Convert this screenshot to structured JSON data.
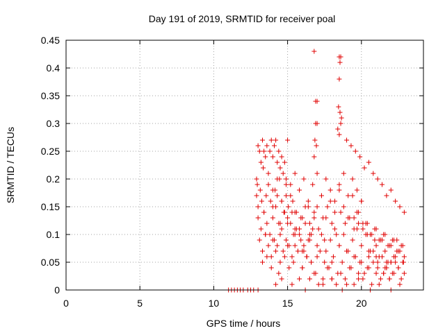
{
  "chart_data": {
    "type": "scatter",
    "title": "Day 191 of 2019, SRMTID for receiver poal",
    "xlabel": "GPS time / hours",
    "ylabel": "SRMTID / TECUs",
    "xlim": [
      0,
      24.2
    ],
    "ylim": [
      0,
      0.45
    ],
    "xticks": [
      0,
      5,
      10,
      15,
      20
    ],
    "xtick_labels": [
      "0",
      "5",
      "10",
      "15",
      "20"
    ],
    "yticks": [
      0,
      0.05,
      0.1,
      0.15,
      0.2,
      0.25,
      0.3,
      0.35,
      0.4,
      0.45
    ],
    "ytick_labels": [
      "0",
      "0.05",
      "0.1",
      "0.15",
      "0.2",
      "0.25",
      "0.3",
      "0.35",
      "0.4",
      "0.45"
    ],
    "grid": true,
    "marker": "+",
    "color": "#e00000",
    "series": [
      {
        "name": "SRMTID",
        "x": [
          11.0,
          11.2,
          11.4,
          11.6,
          11.8,
          12.0,
          12.3,
          12.5,
          12.7,
          13.0,
          12.9,
          12.95,
          13.0,
          13.1,
          13.2,
          13.3,
          13.35,
          13.4,
          13.5,
          13.6,
          13.7,
          13.8,
          13.9,
          14.0,
          14.1,
          14.2,
          14.3,
          14.4,
          14.5,
          14.6,
          14.7,
          14.8,
          14.9,
          15.0,
          12.9,
          13.0,
          13.15,
          13.25,
          13.4,
          13.55,
          13.7,
          13.85,
          14.0,
          14.15,
          14.3,
          14.45,
          14.6,
          14.75,
          14.9,
          15.05,
          15.2,
          15.35,
          15.5,
          13.0,
          13.2,
          13.4,
          13.6,
          13.8,
          14.0,
          14.2,
          14.4,
          14.6,
          14.8,
          15.0,
          15.2,
          15.4,
          15.6,
          15.8,
          16.0,
          16.2,
          16.4,
          16.6,
          16.8,
          13.1,
          13.3,
          13.5,
          13.7,
          13.9,
          14.1,
          14.3,
          14.5,
          14.7,
          14.9,
          15.1,
          15.3,
          15.5,
          15.7,
          15.9,
          16.1,
          16.3,
          16.5,
          13.3,
          13.6,
          13.9,
          14.2,
          14.5,
          14.8,
          15.1,
          15.4,
          15.7,
          16.0,
          16.3,
          16.6,
          14.0,
          14.3,
          14.6,
          14.9,
          15.2,
          15.5,
          15.8,
          16.1,
          16.4,
          16.7,
          17.0,
          17.3,
          17.6,
          17.9,
          18.2,
          18.5,
          18.8,
          19.1,
          19.4,
          19.7,
          20.0,
          15.0,
          15.3,
          15.6,
          15.9,
          16.2,
          16.5,
          16.8,
          17.1,
          17.4,
          17.7,
          18.0,
          18.3,
          18.6,
          18.9,
          19.2,
          19.5,
          19.8,
          20.1,
          20.4,
          15.5,
          15.8,
          16.1,
          16.4,
          16.7,
          17.0,
          17.3,
          17.6,
          17.9,
          18.2,
          18.5,
          18.8,
          19.1,
          19.4,
          19.7,
          20.0,
          20.3,
          20.6,
          20.9,
          16.0,
          16.3,
          16.6,
          16.9,
          17.2,
          17.5,
          17.8,
          18.1,
          18.4,
          18.7,
          19.0,
          19.3,
          19.6,
          19.9,
          20.2,
          20.5,
          20.8,
          21.1,
          21.4,
          21.7,
          16.5,
          16.8,
          17.1,
          17.4,
          17.7,
          18.0,
          18.3,
          18.6,
          18.9,
          19.2,
          19.5,
          19.8,
          20.1,
          20.4,
          20.7,
          21.0,
          21.3,
          21.6,
          21.9,
          22.2,
          17.0,
          17.3,
          17.6,
          17.9,
          18.2,
          18.5,
          18.8,
          19.1,
          19.4,
          19.7,
          20.0,
          20.3,
          20.6,
          20.9,
          21.2,
          21.5,
          21.8,
          22.1,
          22.4,
          22.7,
          16.8,
          16.9,
          17.0,
          16.85,
          16.95,
          16.9,
          17.0,
          16.8,
          18.5,
          18.55,
          18.6,
          18.5,
          18.45,
          18.55,
          18.6,
          18.5,
          18.65,
          18.4,
          19.0,
          19.3,
          19.6,
          19.9,
          20.2,
          20.5,
          20.8,
          21.1,
          21.4,
          21.7,
          22.0,
          22.3,
          22.6,
          22.9,
          19.5,
          19.8,
          20.1,
          20.4,
          20.7,
          21.0,
          21.3,
          21.6,
          21.9,
          22.2,
          22.5,
          22.8,
          20.5,
          20.8,
          21.1,
          21.4,
          21.7,
          22.0,
          22.3,
          22.6,
          22.85,
          21.0,
          21.2,
          21.4,
          21.6,
          21.8,
          22.0,
          22.2,
          22.4,
          22.6,
          22.8,
          21.5,
          21.7,
          21.9,
          22.1,
          22.3,
          22.5,
          22.7,
          22.9,
          13.5,
          14.0,
          14.5,
          15.0,
          15.5,
          16.0,
          16.5,
          17.0,
          17.5,
          18.0,
          18.5,
          19.0,
          19.5,
          20.0,
          20.5,
          21.0,
          21.5,
          22.0,
          22.5,
          22.9,
          14.2,
          14.4,
          14.6,
          15.3,
          15.8,
          16.2,
          17.4,
          18.0,
          18.7,
          19.0,
          19.8,
          20.6,
          21.2,
          22.0,
          22.6
        ],
        "y": [
          0,
          0,
          0,
          0,
          0,
          0,
          0,
          0,
          0,
          0,
          0.2,
          0.19,
          0.26,
          0.25,
          0.23,
          0.27,
          0.22,
          0.25,
          0.24,
          0.26,
          0.21,
          0.25,
          0.27,
          0.24,
          0.26,
          0.27,
          0.23,
          0.25,
          0.22,
          0.24,
          0.21,
          0.23,
          0.2,
          0.27,
          0.17,
          0.15,
          0.18,
          0.16,
          0.14,
          0.17,
          0.19,
          0.16,
          0.15,
          0.18,
          0.17,
          0.2,
          0.16,
          0.14,
          0.17,
          0.15,
          0.19,
          0.16,
          0.14,
          0.13,
          0.11,
          0.14,
          0.12,
          0.1,
          0.13,
          0.15,
          0.12,
          0.11,
          0.14,
          0.13,
          0.12,
          0.1,
          0.14,
          0.11,
          0.13,
          0.12,
          0.15,
          0.1,
          0.13,
          0.09,
          0.07,
          0.1,
          0.08,
          0.06,
          0.09,
          0.08,
          0.1,
          0.07,
          0.09,
          0.08,
          0.06,
          0.1,
          0.07,
          0.09,
          0.08,
          0.06,
          0.09,
          0.05,
          0.06,
          0.04,
          0.07,
          0.05,
          0.06,
          0.04,
          0.05,
          0.07,
          0.04,
          0.06,
          0.05,
          0.18,
          0.2,
          0.16,
          0.19,
          0.17,
          0.21,
          0.18,
          0.2,
          0.16,
          0.19,
          0.21,
          0.17,
          0.2,
          0.18,
          0.16,
          0.19,
          0.21,
          0.17,
          0.2,
          0.18,
          0.16,
          0.12,
          0.14,
          0.11,
          0.13,
          0.15,
          0.12,
          0.14,
          0.11,
          0.13,
          0.15,
          0.12,
          0.1,
          0.14,
          0.12,
          0.13,
          0.11,
          0.14,
          0.12,
          0.1,
          0.08,
          0.1,
          0.07,
          0.09,
          0.11,
          0.08,
          0.1,
          0.07,
          0.09,
          0.11,
          0.08,
          0.1,
          0.07,
          0.09,
          0.11,
          0.08,
          0.1,
          0.07,
          0.09,
          0.04,
          0.06,
          0.05,
          0.03,
          0.07,
          0.05,
          0.04,
          0.06,
          0.03,
          0.05,
          0.07,
          0.04,
          0.06,
          0.05,
          0.03,
          0.07,
          0.05,
          0.04,
          0.06,
          0.05,
          0.02,
          0.03,
          0.01,
          0.02,
          0.04,
          0.02,
          0.01,
          0.03,
          0.02,
          0.04,
          0.01,
          0.03,
          0.02,
          0.04,
          0.01,
          0.03,
          0.02,
          0.04,
          0.02,
          0.03,
          0.15,
          0.17,
          0.13,
          0.16,
          0.14,
          0.18,
          0.15,
          0.13,
          0.17,
          0.14,
          0.16,
          0.12,
          0.1,
          0.11,
          0.09,
          0.1,
          0.08,
          0.09,
          0.07,
          0.08,
          0.43,
          0.34,
          0.3,
          0.27,
          0.26,
          0.3,
          0.34,
          0.24,
          0.42,
          0.41,
          0.42,
          0.38,
          0.33,
          0.32,
          0.3,
          0.28,
          0.31,
          0.29,
          0.27,
          0.26,
          0.25,
          0.24,
          0.22,
          0.23,
          0.21,
          0.2,
          0.19,
          0.17,
          0.18,
          0.16,
          0.15,
          0.14,
          0.13,
          0.12,
          0.11,
          0.12,
          0.1,
          0.11,
          0.09,
          0.1,
          0.08,
          0.09,
          0.07,
          0.08,
          0.06,
          0.07,
          0.05,
          0.06,
          0.04,
          0.05,
          0.06,
          0.07,
          0.05,
          0.08,
          0.06,
          0.09,
          0.07,
          0.05,
          0.08,
          0.06,
          0.09,
          0.07,
          0.05,
          0.03,
          0.04,
          0.02,
          0.03,
          0.05,
          0.04,
          0.02,
          0.03,
          0.1,
          0.09,
          0.12,
          0.08,
          0.11,
          0.07,
          0.1,
          0.06,
          0.09,
          0.05,
          0.08,
          0.07,
          0.06,
          0.05,
          0.04,
          0.06,
          0.03,
          0.05,
          0.04,
          0.06,
          0.01,
          0.03,
          0.02,
          0.01,
          0.02,
          0.0,
          0.01,
          0.02,
          0.0,
          0.01,
          0.02,
          0.0,
          0.01,
          0.0,
          0.01
        ]
      }
    ]
  }
}
